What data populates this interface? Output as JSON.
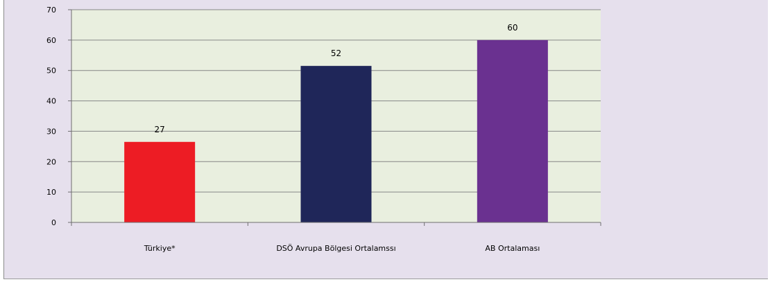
{
  "chart_data": {
    "type": "bar",
    "categories": [
      "Türkiye*",
      "DSÖ Avrupa Bölgesi Ortalamssı",
      "AB Ortalaması"
    ],
    "values": [
      26.5,
      51.5,
      60
    ],
    "data_labels": [
      "27",
      "52",
      "60"
    ],
    "ylim": [
      0,
      70
    ],
    "yticks": [
      "0",
      "10",
      "20",
      "30",
      "40",
      "50",
      "60",
      "70"
    ],
    "grid": true,
    "legend": "none",
    "title": "",
    "xlabel": "",
    "ylabel": ""
  },
  "colors": {
    "bars": [
      "#ed1c24",
      "#1f2659",
      "#6a3190"
    ],
    "plot_background": "#e9efdf",
    "frame_background": "#e6e0ed",
    "gridline": "#868686"
  }
}
